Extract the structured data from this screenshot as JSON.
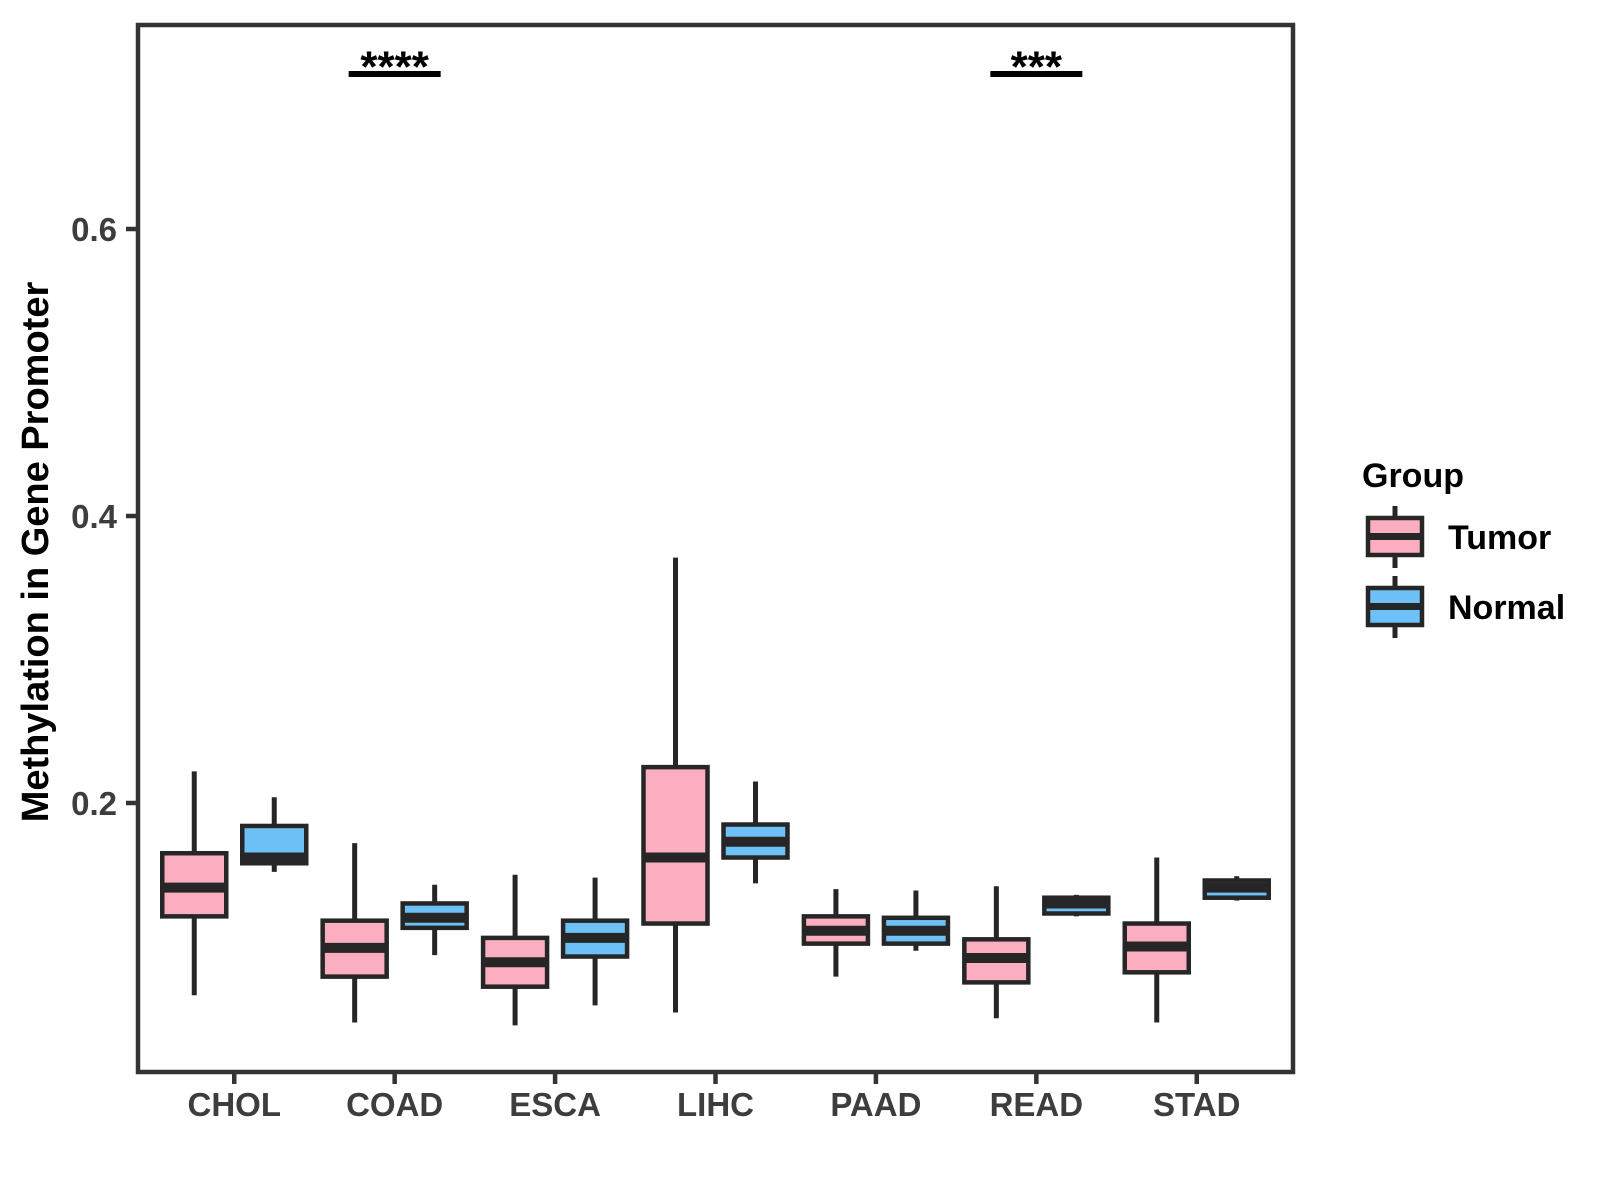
{
  "chart_data": {
    "type": "boxplot",
    "title": "",
    "xlabel": "",
    "ylabel": "Methylation in Gene Promoter",
    "legend_title": "Group",
    "legend_position": "right",
    "grid": false,
    "categories": [
      "CHOL",
      "COAD",
      "ESCA",
      "LIHC",
      "PAAD",
      "READ",
      "STAD"
    ],
    "yticks": {
      "values": [
        0.2,
        0.4,
        0.6
      ],
      "labels": [
        "0.2",
        "0.4",
        "0.6"
      ]
    },
    "ylim": [
      0.013,
      0.743
    ],
    "series": [
      {
        "name": "Tumor",
        "fill": "#FBAEC0",
        "boxes": [
          {
            "category": "CHOL",
            "whislo": 0.066,
            "q1": 0.121,
            "med": 0.141,
            "q3": 0.165,
            "whishi": 0.222
          },
          {
            "category": "COAD",
            "whislo": 0.047,
            "q1": 0.079,
            "med": 0.099,
            "q3": 0.118,
            "whishi": 0.172
          },
          {
            "category": "ESCA",
            "whislo": 0.045,
            "q1": 0.072,
            "med": 0.089,
            "q3": 0.106,
            "whishi": 0.15
          },
          {
            "category": "LIHC",
            "whislo": 0.054,
            "q1": 0.116,
            "med": 0.162,
            "q3": 0.225,
            "whishi": 0.371
          },
          {
            "category": "PAAD",
            "whislo": 0.079,
            "q1": 0.102,
            "med": 0.111,
            "q3": 0.121,
            "whishi": 0.14
          },
          {
            "category": "READ",
            "whislo": 0.05,
            "q1": 0.075,
            "med": 0.092,
            "q3": 0.105,
            "whishi": 0.142
          },
          {
            "category": "STAD",
            "whislo": 0.047,
            "q1": 0.082,
            "med": 0.1,
            "q3": 0.116,
            "whishi": 0.162
          }
        ]
      },
      {
        "name": "Normal",
        "fill": "#6EC1F7",
        "boxes": [
          {
            "category": "CHOL",
            "whislo": 0.152,
            "q1": 0.158,
            "med": 0.162,
            "q3": 0.184,
            "whishi": 0.204
          },
          {
            "category": "COAD",
            "whislo": 0.094,
            "q1": 0.113,
            "med": 0.12,
            "q3": 0.13,
            "whishi": 0.143
          },
          {
            "category": "ESCA",
            "whislo": 0.059,
            "q1": 0.093,
            "med": 0.106,
            "q3": 0.118,
            "whishi": 0.148
          },
          {
            "category": "LIHC",
            "whislo": 0.144,
            "q1": 0.162,
            "med": 0.173,
            "q3": 0.185,
            "whishi": 0.215
          },
          {
            "category": "PAAD",
            "whislo": 0.097,
            "q1": 0.102,
            "med": 0.111,
            "q3": 0.12,
            "whishi": 0.139
          },
          {
            "category": "READ",
            "whislo": 0.121,
            "q1": 0.123,
            "med": 0.13,
            "q3": 0.134,
            "whishi": 0.136
          },
          {
            "category": "STAD",
            "whislo": 0.132,
            "q1": 0.134,
            "med": 0.141,
            "q3": 0.146,
            "whishi": 0.149
          }
        ]
      }
    ],
    "annotations": [
      {
        "category": "COAD",
        "label": "****",
        "y": 0.708
      },
      {
        "category": "READ",
        "label": "***",
        "y": 0.708
      }
    ],
    "colors": {
      "tumor_fill": "#FBAEC0",
      "normal_fill": "#6EC1F7",
      "box_stroke": "#262626",
      "axis_stroke": "#333333",
      "tick_label": "#3D3D3D",
      "title_text": "#000000"
    }
  }
}
